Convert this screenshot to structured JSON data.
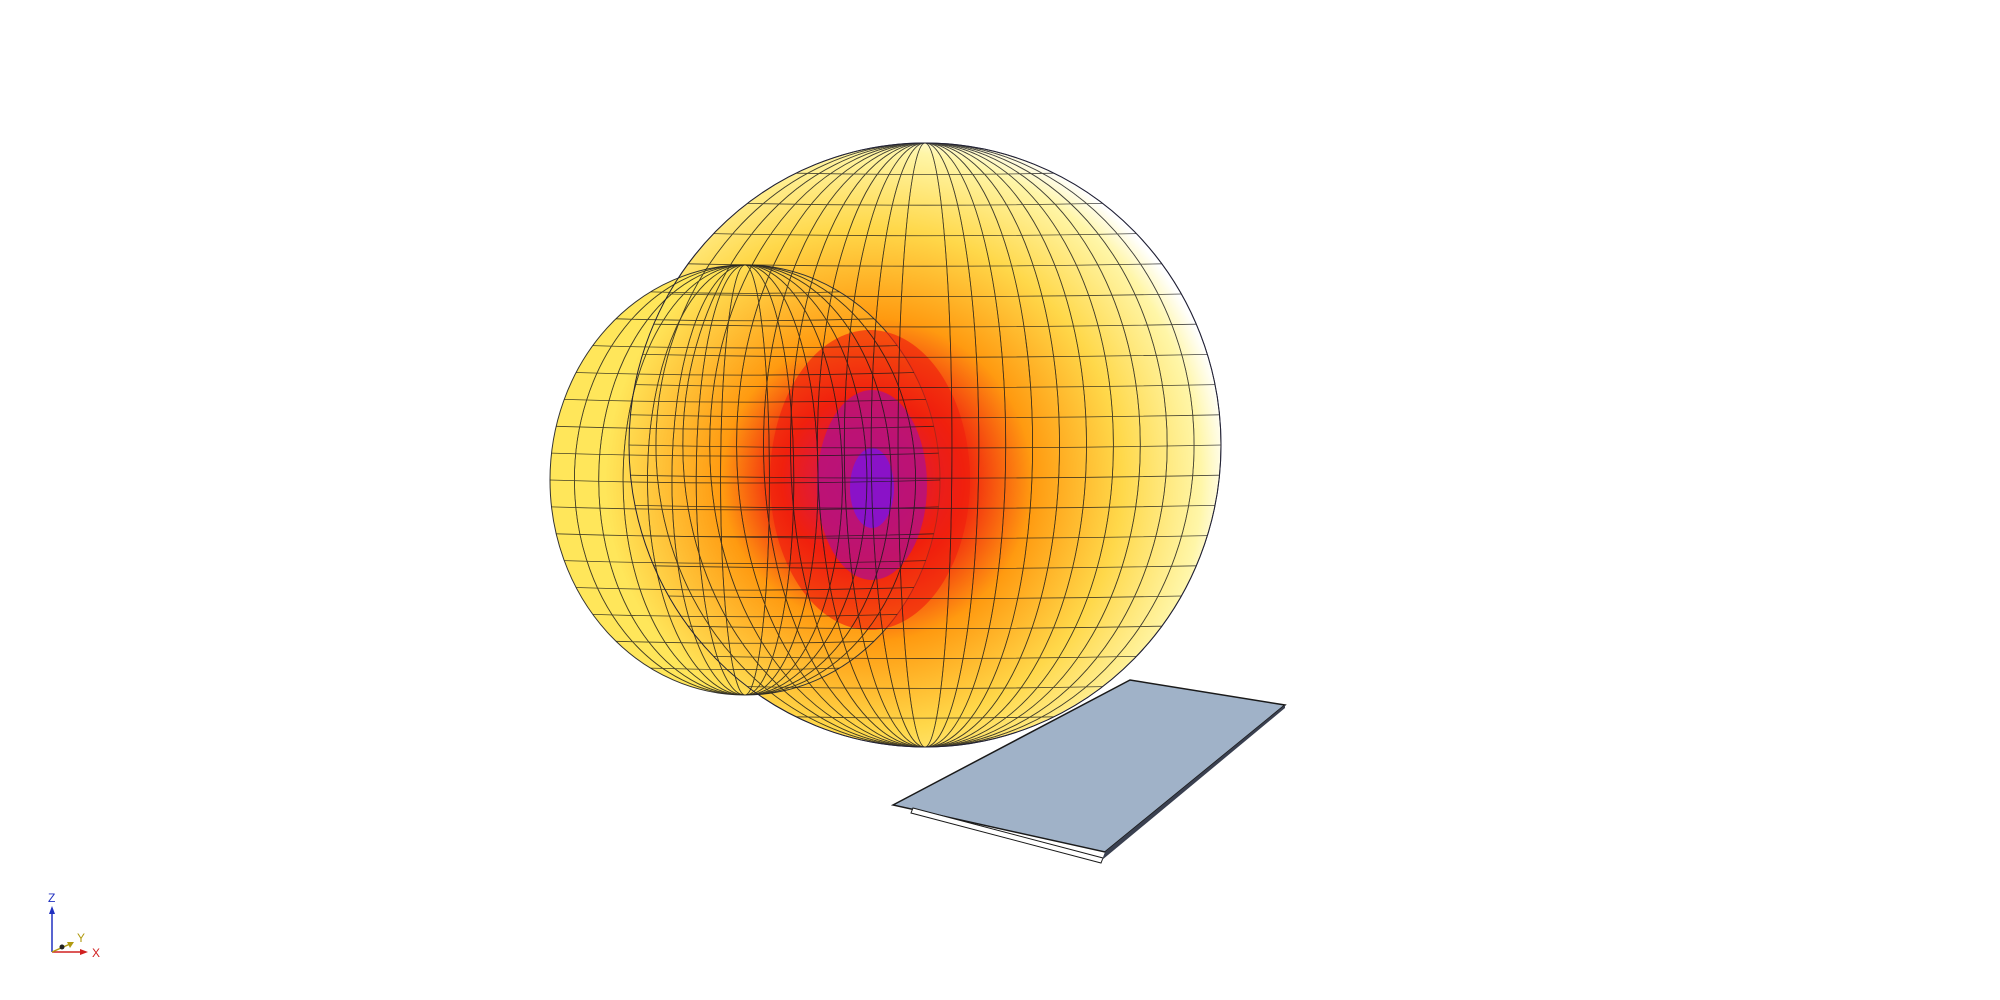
{
  "colors": {
    "background": "#ffffff",
    "pattern_yellow": "#ffe65a",
    "pattern_orange": "#ff9a10",
    "pattern_red": "#f0200e",
    "pattern_purple": "#8a12c8",
    "plate": "#a0b2c8",
    "plate_edge": "#1a1a1a",
    "axis_x": "#d02020",
    "axis_y": "#b09a10",
    "axis_z": "#2030c0"
  },
  "axes_triad": {
    "x_label": "X",
    "y_label": "Y",
    "z_label": "Z"
  }
}
